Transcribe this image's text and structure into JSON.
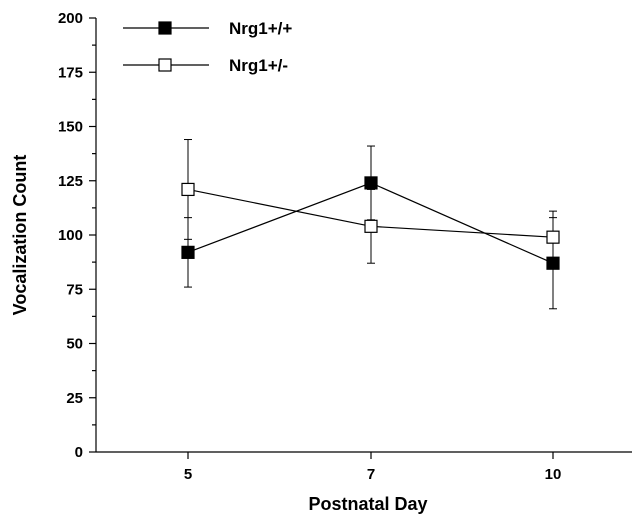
{
  "chart_data": {
    "type": "line",
    "title": "",
    "xlabel": "Postnatal Day",
    "ylabel": "Vocalization Count",
    "categories": [
      "5",
      "7",
      "10"
    ],
    "ylim": [
      0,
      200
    ],
    "yticks": [
      "0",
      "25",
      "50",
      "75",
      "100",
      "125",
      "150",
      "175",
      "200"
    ],
    "grid": false,
    "legend_position": "top-left",
    "series": [
      {
        "name": "Nrg1+/+",
        "marker": "filled-square",
        "color": "#000000",
        "values": [
          92,
          124,
          87
        ],
        "error": [
          16,
          17,
          21
        ]
      },
      {
        "name": "Nrg1+/-",
        "marker": "open-square",
        "color": "#000000",
        "values": [
          121,
          104,
          99
        ],
        "error": [
          23,
          17,
          12
        ]
      }
    ]
  }
}
